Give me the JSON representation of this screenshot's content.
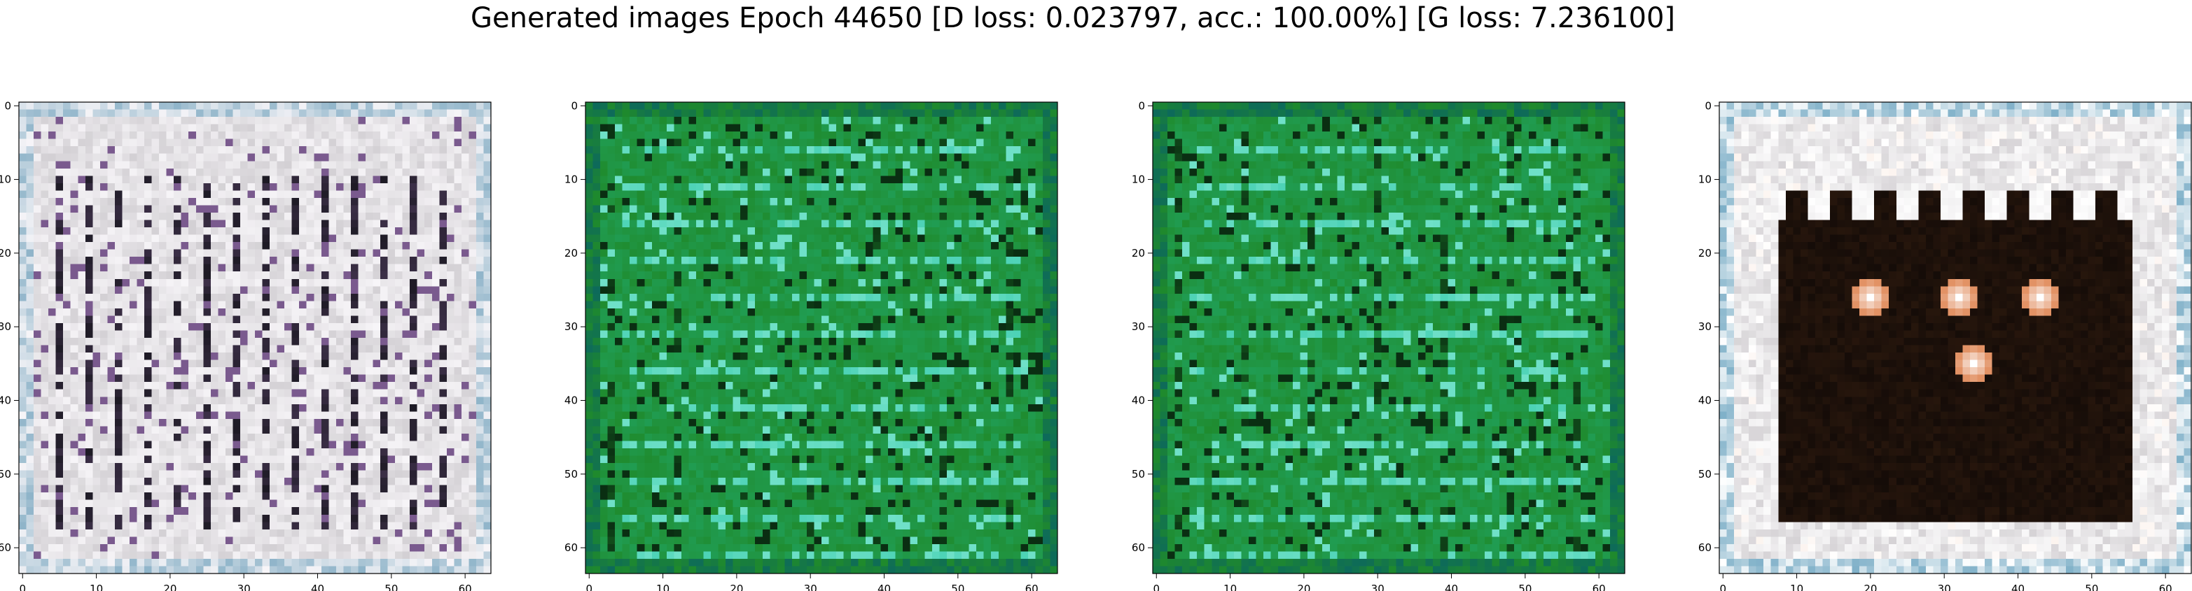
{
  "figure": {
    "title": "Generated images Epoch 44650 [D loss: 0.023797, acc.: 100.00%] [G loss: 7.236100]"
  },
  "chart_data": [
    {
      "type": "heatmap",
      "title": "",
      "xlabel": "",
      "ylabel": "",
      "xlim": [
        -0.5,
        63.5
      ],
      "ylim": [
        63.5,
        -0.5
      ],
      "xticks": [
        0,
        10,
        20,
        30,
        40,
        50,
        60
      ],
      "yticks": [
        0,
        10,
        20,
        30,
        40,
        50,
        60
      ],
      "grid": false,
      "palette": {
        "base": "#d3d0d4",
        "light": "#f7f5f8",
        "dark": "#1d1a24",
        "accent": "#7a5a8e",
        "edge": "#8fb4c9"
      },
      "style": "facade"
    },
    {
      "type": "heatmap",
      "title": "",
      "xlabel": "",
      "ylabel": "",
      "xlim": [
        -0.5,
        63.5
      ],
      "ylim": [
        63.5,
        -0.5
      ],
      "xticks": [
        0,
        10,
        20,
        30,
        40,
        50,
        60
      ],
      "yticks": [
        0,
        10,
        20,
        30,
        40,
        50,
        60
      ],
      "grid": false,
      "palette": {
        "base": "#1f8a2c",
        "light": "#6fe0c8",
        "dark": "#0a2e12",
        "accent": "#23c2a0",
        "edge": "#0d6a5a"
      },
      "style": "green"
    },
    {
      "type": "heatmap",
      "title": "",
      "xlabel": "",
      "ylabel": "",
      "xlim": [
        -0.5,
        63.5
      ],
      "ylim": [
        63.5,
        -0.5
      ],
      "xticks": [
        0,
        10,
        20,
        30,
        40,
        50,
        60
      ],
      "yticks": [
        0,
        10,
        20,
        30,
        40,
        50,
        60
      ],
      "grid": false,
      "palette": {
        "base": "#1f8a2c",
        "light": "#6fe0c8",
        "dark": "#0a2e12",
        "accent": "#23c2a0",
        "edge": "#0d6a5a"
      },
      "style": "green"
    },
    {
      "type": "heatmap",
      "title": "",
      "xlabel": "",
      "ylabel": "",
      "xlim": [
        -0.5,
        63.5
      ],
      "ylim": [
        63.5,
        -0.5
      ],
      "xticks": [
        0,
        10,
        20,
        30,
        40,
        50,
        60
      ],
      "yticks": [
        0,
        10,
        20,
        30,
        40,
        50,
        60
      ],
      "grid": false,
      "palette": {
        "base": "#d6d3d6",
        "light": "#ffffff",
        "dark": "#150c08",
        "accent": "#e08a5a",
        "edge": "#7fb0c8"
      },
      "style": "dark-window"
    }
  ]
}
